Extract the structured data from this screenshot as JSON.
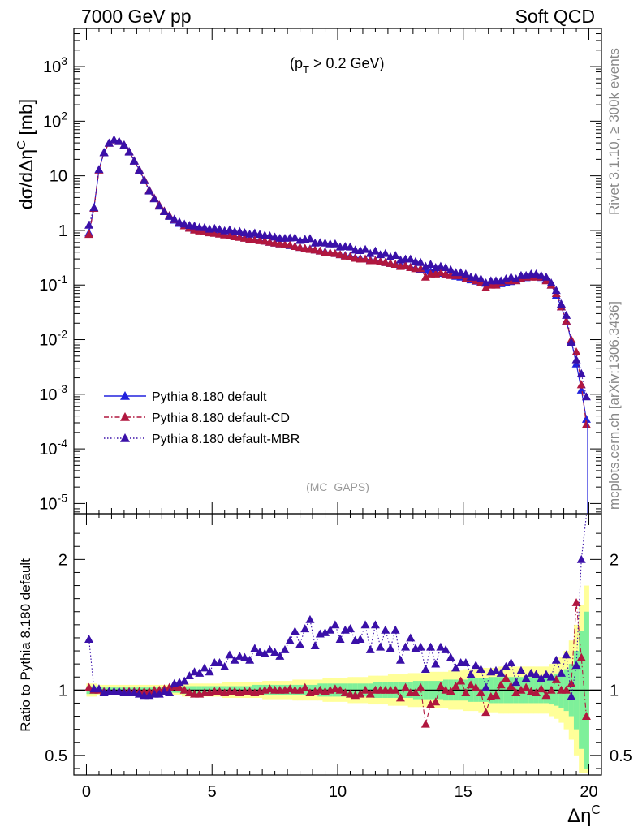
{
  "header": {
    "left": "7000 GeV pp",
    "right": "Soft QCD"
  },
  "annotations": {
    "cut": "(p",
    "cut_sub": "T",
    "cut_rest": " > 0.2 GeV)",
    "analysis": "(MC_GAPS)",
    "side_top": "Rivet 3.1.10, ≥ 300k events",
    "side_bottom": "mcplots.cern.ch [arXiv:1306.3436]"
  },
  "axes": {
    "ylabel_main": "dσ/dΔη",
    "ylabel_main_sup": "C",
    "ylabel_main_unit": " [mb]",
    "ylabel_ratio": "Ratio to Pythia 8.180 default",
    "xlabel": "Δη",
    "xlabel_sup": "C"
  },
  "legend": [
    {
      "label": "Pythia 8.180 default",
      "color": "#2222dd",
      "style": "solid"
    },
    {
      "label": "Pythia 8.180 default-CD",
      "color": "#b0173f",
      "style": "dashdot"
    },
    {
      "label": "Pythia 8.180 default-MBR",
      "color": "#3a10a8",
      "style": "dotted"
    }
  ],
  "chart_data": {
    "type": "line",
    "x_range": [
      -0.5,
      20.5
    ],
    "x_ticks": [
      "0",
      "5",
      "10",
      "15",
      "20"
    ],
    "main_y_scale": "log",
    "main_y_range": [
      6.5e-06,
      5000
    ],
    "main_y_ticks": [
      "10^-5",
      "10^-4",
      "10^-3",
      "10^-2",
      "10^-1",
      "1",
      "10",
      "10^2",
      "10^3"
    ],
    "ratio_y_range": [
      0.35,
      2.35
    ],
    "ratio_y_ticks": [
      "0.5",
      "1",
      "2"
    ],
    "x": [
      0.1,
      0.3,
      0.5,
      0.7,
      0.9,
      1.1,
      1.3,
      1.5,
      1.7,
      1.9,
      2.1,
      2.3,
      2.5,
      2.7,
      2.9,
      3.1,
      3.3,
      3.5,
      3.7,
      3.9,
      4.1,
      4.3,
      4.5,
      4.7,
      4.9,
      5.1,
      5.3,
      5.5,
      5.7,
      5.9,
      6.1,
      6.3,
      6.5,
      6.7,
      6.9,
      7.1,
      7.3,
      7.5,
      7.7,
      7.9,
      8.1,
      8.3,
      8.5,
      8.7,
      8.9,
      9.1,
      9.3,
      9.5,
      9.7,
      9.9,
      10.1,
      10.3,
      10.5,
      10.7,
      10.9,
      11.1,
      11.3,
      11.5,
      11.7,
      11.9,
      12.1,
      12.3,
      12.5,
      12.7,
      12.9,
      13.1,
      13.3,
      13.5,
      13.7,
      13.9,
      14.1,
      14.3,
      14.5,
      14.7,
      14.9,
      15.1,
      15.3,
      15.5,
      15.7,
      15.9,
      16.1,
      16.3,
      16.5,
      16.7,
      16.9,
      17.1,
      17.3,
      17.5,
      17.7,
      17.9,
      18.1,
      18.3,
      18.5,
      18.7,
      18.9,
      19.1,
      19.3,
      19.5,
      19.7,
      19.9
    ],
    "series": [
      {
        "name": "Pythia 8.180 default",
        "values": [
          0.9,
          2.6,
          13,
          27,
          40,
          46,
          43,
          37,
          28,
          19,
          13,
          8.5,
          5.5,
          3.9,
          2.9,
          2.25,
          1.85,
          1.55,
          1.35,
          1.22,
          1.12,
          1.06,
          1.01,
          0.97,
          0.93,
          0.9,
          0.87,
          0.84,
          0.81,
          0.78,
          0.76,
          0.73,
          0.7,
          0.68,
          0.66,
          0.64,
          0.61,
          0.59,
          0.57,
          0.55,
          0.53,
          0.51,
          0.49,
          0.47,
          0.46,
          0.44,
          0.42,
          0.41,
          0.39,
          0.38,
          0.36,
          0.35,
          0.34,
          0.32,
          0.31,
          0.3,
          0.29,
          0.28,
          0.27,
          0.26,
          0.25,
          0.24,
          0.235,
          0.225,
          0.215,
          0.205,
          0.195,
          0.19,
          0.18,
          0.175,
          0.165,
          0.16,
          0.152,
          0.145,
          0.14,
          0.132,
          0.125,
          0.118,
          0.112,
          0.108,
          0.105,
          0.104,
          0.106,
          0.11,
          0.116,
          0.123,
          0.13,
          0.137,
          0.142,
          0.143,
          0.138,
          0.125,
          0.1,
          0.065,
          0.04,
          0.022,
          0.0095,
          0.0036,
          0.0012,
          0.00035
        ]
      },
      {
        "name": "Pythia 8.180 default-CD",
        "values": [
          0.85,
          2.55,
          12.8,
          26.5,
          39.6,
          45.5,
          42.6,
          36.6,
          27.7,
          18.8,
          12.9,
          8.45,
          5.45,
          3.9,
          2.9,
          2.28,
          1.88,
          1.6,
          1.38,
          1.22,
          1.1,
          1.02,
          0.98,
          0.95,
          0.91,
          0.89,
          0.86,
          0.83,
          0.8,
          0.77,
          0.75,
          0.72,
          0.69,
          0.67,
          0.65,
          0.64,
          0.61,
          0.59,
          0.57,
          0.55,
          0.54,
          0.51,
          0.49,
          0.47,
          0.45,
          0.44,
          0.42,
          0.4,
          0.39,
          0.38,
          0.36,
          0.34,
          0.33,
          0.31,
          0.3,
          0.3,
          0.28,
          0.28,
          0.27,
          0.26,
          0.25,
          0.24,
          0.22,
          0.23,
          0.21,
          0.2,
          0.2,
          0.14,
          0.16,
          0.16,
          0.17,
          0.16,
          0.15,
          0.15,
          0.15,
          0.13,
          0.13,
          0.12,
          0.11,
          0.09,
          0.1,
          0.1,
          0.11,
          0.12,
          0.12,
          0.12,
          0.13,
          0.14,
          0.14,
          0.14,
          0.14,
          0.12,
          0.1,
          0.07,
          0.04,
          0.022,
          0.01,
          0.006,
          0.0015,
          0.00028
        ]
      },
      {
        "name": "Pythia 8.180 default-MBR",
        "values": [
          1.25,
          2.62,
          13.1,
          26.6,
          39.8,
          45.6,
          42.6,
          36.4,
          27.4,
          18.6,
          12.6,
          8.2,
          5.3,
          3.8,
          2.8,
          2.22,
          1.82,
          1.62,
          1.43,
          1.31,
          1.24,
          1.21,
          1.14,
          1.13,
          1.06,
          1.09,
          1.05,
          0.99,
          1.03,
          0.96,
          0.96,
          0.91,
          0.86,
          0.9,
          0.85,
          0.82,
          0.8,
          0.76,
          0.72,
          0.72,
          0.73,
          0.74,
          0.66,
          0.69,
          0.71,
          0.59,
          0.6,
          0.59,
          0.57,
          0.57,
          0.5,
          0.51,
          0.5,
          0.44,
          0.43,
          0.45,
          0.38,
          0.42,
          0.36,
          0.38,
          0.33,
          0.35,
          0.29,
          0.3,
          0.3,
          0.27,
          0.26,
          0.22,
          0.24,
          0.21,
          0.22,
          0.21,
          0.19,
          0.17,
          0.17,
          0.16,
          0.14,
          0.14,
          0.13,
          0.11,
          0.12,
          0.12,
          0.12,
          0.13,
          0.14,
          0.13,
          0.15,
          0.15,
          0.16,
          0.16,
          0.15,
          0.14,
          0.11,
          0.08,
          0.045,
          0.028,
          0.009,
          0.0043,
          0.0024,
          0.0009
        ]
      }
    ],
    "ratio_series": [
      {
        "name": "Pythia 8.180 default-CD",
        "values": [
          1.02,
          1.0,
          1.0,
          0.99,
          0.99,
          0.99,
          0.99,
          0.99,
          0.99,
          0.99,
          0.99,
          0.99,
          0.99,
          1.0,
          1.0,
          1.01,
          1.02,
          1.03,
          1.02,
          1.0,
          0.98,
          0.97,
          0.97,
          0.98,
          0.98,
          0.99,
          0.99,
          0.98,
          0.99,
          0.99,
          0.98,
          0.99,
          0.99,
          0.98,
          0.99,
          1.0,
          1.01,
          1.0,
          1.0,
          1.0,
          1.01,
          1.0,
          1.0,
          1.02,
          0.98,
          0.99,
          1.0,
          0.99,
          1.0,
          1.01,
          1.0,
          0.98,
          0.97,
          0.96,
          0.97,
          1.0,
          0.97,
          1.0,
          1.0,
          1.0,
          1.0,
          1.0,
          0.94,
          1.02,
          0.98,
          0.98,
          1.02,
          0.74,
          0.89,
          0.91,
          1.03,
          1.0,
          0.99,
          1.03,
          1.07,
          0.98,
          1.04,
          1.02,
          0.98,
          0.83,
          0.95,
          0.96,
          1.04,
          1.09,
          1.03,
          0.98,
          1.0,
          1.02,
          0.99,
          0.98,
          1.01,
          0.96,
          1.0,
          1.08,
          1.0,
          1.0,
          1.05,
          1.67,
          1.25,
          0.8
        ]
      },
      {
        "name": "Pythia 8.180 default-MBR",
        "values": [
          1.39,
          1.01,
          1.01,
          0.98,
          0.99,
          0.99,
          0.99,
          0.98,
          0.98,
          0.98,
          0.97,
          0.96,
          0.96,
          0.97,
          0.97,
          0.99,
          0.98,
          1.05,
          1.06,
          1.07,
          1.11,
          1.14,
          1.13,
          1.17,
          1.14,
          1.21,
          1.21,
          1.18,
          1.27,
          1.23,
          1.26,
          1.25,
          1.23,
          1.32,
          1.29,
          1.28,
          1.31,
          1.29,
          1.26,
          1.31,
          1.38,
          1.45,
          1.35,
          1.47,
          1.54,
          1.34,
          1.43,
          1.44,
          1.46,
          1.5,
          1.39,
          1.46,
          1.47,
          1.38,
          1.39,
          1.5,
          1.31,
          1.5,
          1.33,
          1.46,
          1.32,
          1.46,
          1.23,
          1.33,
          1.4,
          1.32,
          1.33,
          1.16,
          1.33,
          1.2,
          1.33,
          1.31,
          1.25,
          1.17,
          1.21,
          1.21,
          1.12,
          1.19,
          1.16,
          1.02,
          1.14,
          1.15,
          1.13,
          1.18,
          1.21,
          1.06,
          1.15,
          1.09,
          1.13,
          1.12,
          1.09,
          1.12,
          1.1,
          1.23,
          1.13,
          1.27,
          0.95,
          1.19,
          2.0,
          2.57
        ]
      }
    ],
    "band_inner": [
      0.03,
      0.03,
      0.02,
      0.02,
      0.02,
      0.02,
      0.02,
      0.02,
      0.02,
      0.02,
      0.02,
      0.02,
      0.02,
      0.02,
      0.02,
      0.02,
      0.02,
      0.02,
      0.02,
      0.03,
      0.03,
      0.03,
      0.03,
      0.03,
      0.03,
      0.03,
      0.03,
      0.03,
      0.03,
      0.03,
      0.03,
      0.03,
      0.03,
      0.04,
      0.04,
      0.04,
      0.04,
      0.04,
      0.04,
      0.04,
      0.04,
      0.04,
      0.04,
      0.04,
      0.04,
      0.04,
      0.05,
      0.05,
      0.05,
      0.05,
      0.05,
      0.05,
      0.05,
      0.05,
      0.05,
      0.05,
      0.05,
      0.06,
      0.06,
      0.06,
      0.06,
      0.06,
      0.06,
      0.06,
      0.06,
      0.07,
      0.07,
      0.07,
      0.07,
      0.07,
      0.07,
      0.08,
      0.08,
      0.08,
      0.08,
      0.08,
      0.09,
      0.09,
      0.09,
      0.09,
      0.1,
      0.1,
      0.1,
      0.1,
      0.1,
      0.1,
      0.1,
      0.1,
      0.1,
      0.1,
      0.1,
      0.1,
      0.11,
      0.12,
      0.14,
      0.16,
      0.2,
      0.3,
      0.45,
      0.6
    ],
    "band_outer": [
      0.05,
      0.05,
      0.04,
      0.04,
      0.04,
      0.04,
      0.04,
      0.04,
      0.04,
      0.04,
      0.04,
      0.04,
      0.04,
      0.04,
      0.04,
      0.04,
      0.04,
      0.04,
      0.04,
      0.05,
      0.05,
      0.05,
      0.05,
      0.05,
      0.05,
      0.05,
      0.05,
      0.06,
      0.06,
      0.06,
      0.06,
      0.06,
      0.06,
      0.06,
      0.06,
      0.07,
      0.07,
      0.07,
      0.07,
      0.07,
      0.07,
      0.08,
      0.08,
      0.08,
      0.08,
      0.08,
      0.08,
      0.09,
      0.09,
      0.09,
      0.09,
      0.09,
      0.1,
      0.1,
      0.1,
      0.1,
      0.11,
      0.11,
      0.11,
      0.11,
      0.12,
      0.12,
      0.12,
      0.12,
      0.13,
      0.13,
      0.13,
      0.13,
      0.14,
      0.14,
      0.14,
      0.14,
      0.15,
      0.15,
      0.15,
      0.16,
      0.16,
      0.16,
      0.17,
      0.17,
      0.17,
      0.17,
      0.18,
      0.18,
      0.18,
      0.18,
      0.18,
      0.18,
      0.18,
      0.18,
      0.18,
      0.18,
      0.2,
      0.22,
      0.25,
      0.3,
      0.38,
      0.5,
      0.65,
      0.8
    ]
  }
}
